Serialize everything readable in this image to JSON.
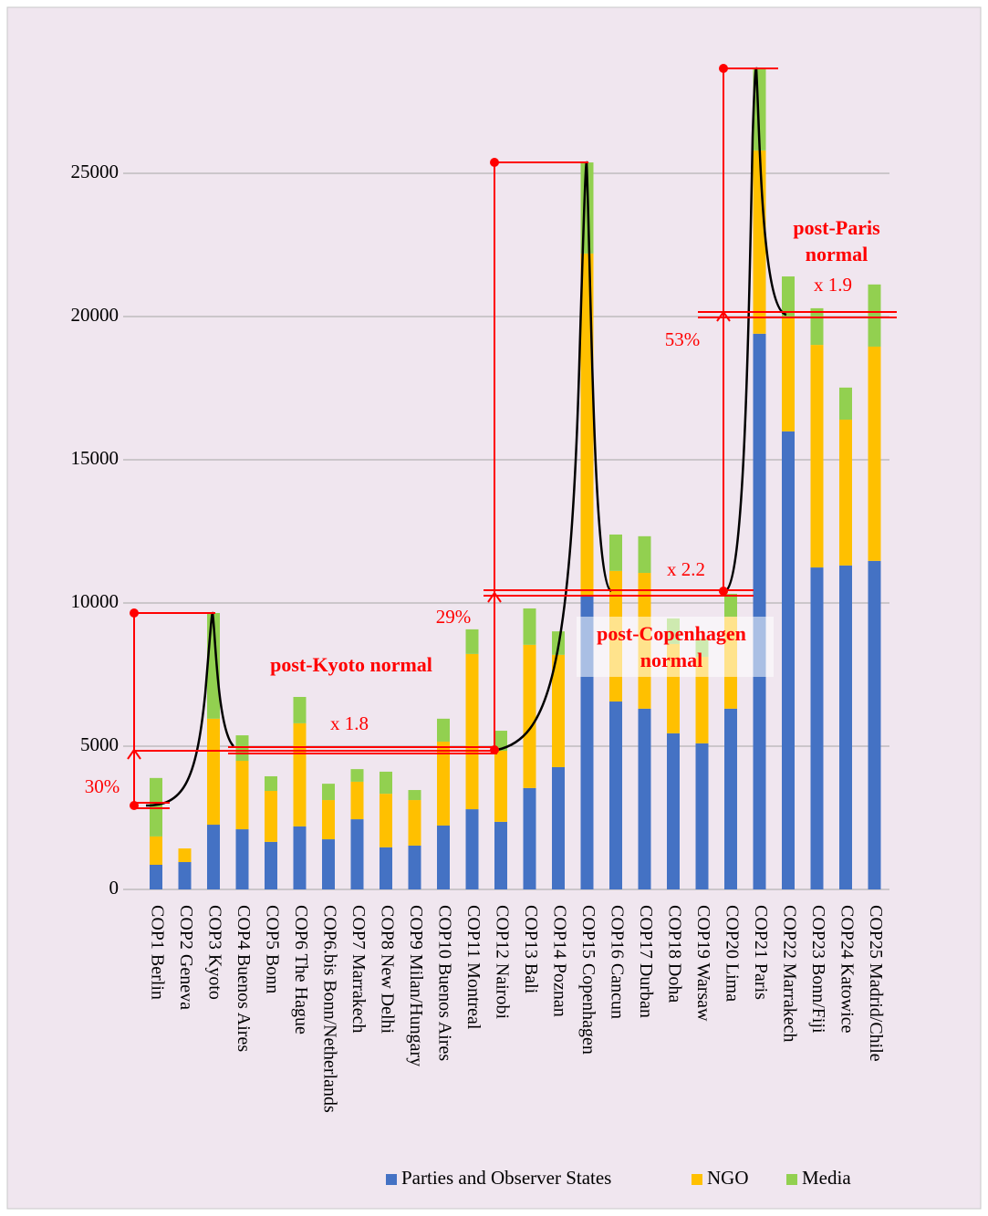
{
  "chart_data": {
    "type": "stacked_bar",
    "categories": [
      "COP1  Berlin",
      "COP2  Geneva",
      "COP3  Kyoto",
      "COP4  Buenos Aires",
      "COP5  Bonn",
      "COP6  The Hague",
      "COP6.bis Bonn/Netherlands",
      "COP7  Marrakech",
      "COP8  New Delhi",
      "COP9  Milan/Hungary",
      "COP10 Buenos Aires",
      "COP11 Montreal",
      "COP12 Nairobi",
      "COP13 Bali",
      "COP14 Poznan",
      "COP15 Copenhagen",
      "COP16 Cancun",
      "COP17 Durban",
      "COP18 Doha",
      "COP19 Warsaw",
      "COP20 Lima",
      "COP21 Paris",
      "COP22 Marrakech",
      "COP23 Bonn/Fiji",
      "COP24 Katowice",
      "COP25 Madrid/Chile"
    ],
    "series": [
      {
        "name": "Parties and Observer States",
        "color": "#4472c4",
        "values": [
          860,
          955,
          2260,
          2100,
          1660,
          2200,
          1750,
          2450,
          1470,
          1530,
          2230,
          2800,
          2360,
          3540,
          4270,
          10260,
          6560,
          6310,
          5450,
          5100,
          6310,
          19400,
          15990,
          11240,
          11310,
          11470
        ]
      },
      {
        "name": "NGO",
        "color": "#ffc000",
        "values": [
          990,
          475,
          3700,
          2390,
          1780,
          3600,
          1370,
          1310,
          1870,
          1590,
          2930,
          5420,
          2480,
          5000,
          3920,
          11940,
          4560,
          4740,
          3120,
          3020,
          3210,
          6400,
          3980,
          7770,
          5090,
          7480
        ]
      },
      {
        "name": "Media",
        "color": "#92d050",
        "values": [
          2040,
          0,
          3690,
          890,
          510,
          920,
          570,
          440,
          770,
          350,
          800,
          860,
          700,
          1270,
          820,
          3180,
          1270,
          1280,
          890,
          640,
          800,
          2870,
          1430,
          1280,
          1120,
          2170
        ]
      }
    ],
    "ylim": [
      0,
      28800
    ],
    "yticks": [
      0,
      5000,
      10000,
      15000,
      20000,
      25000
    ],
    "grid": true,
    "legend": "bottom",
    "annotations": {
      "kyoto_label": "post-Kyoto normal",
      "kyoto_factor": "x 1.8",
      "kyoto_pct": "30%",
      "copenhagen_pct": "29%",
      "copenhagen_label": [
        "post-Copenhagen",
        "normal"
      ],
      "copenhagen_factor": "x 2.2",
      "paris_pct": "53%",
      "paris_label": [
        "post-Paris",
        "normal"
      ],
      "paris_factor": "x 1.9"
    }
  }
}
